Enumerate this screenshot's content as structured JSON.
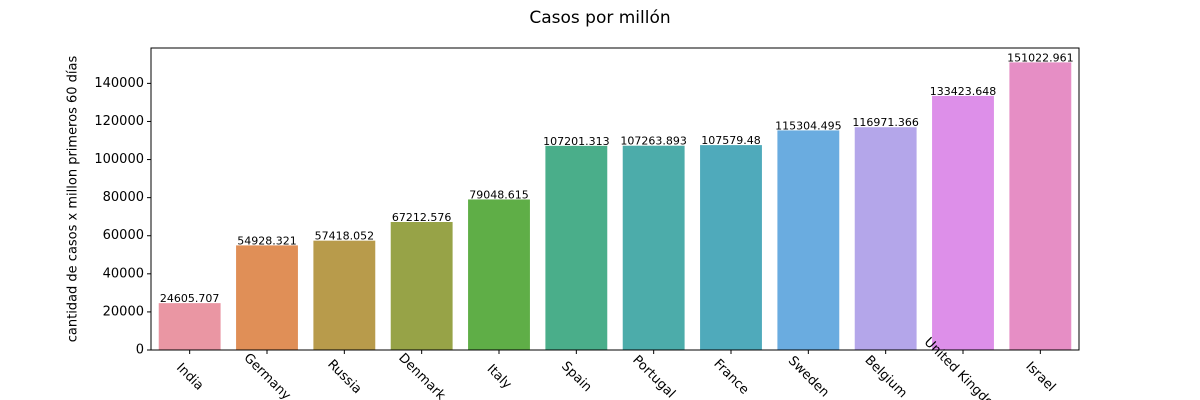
{
  "chart_data": {
    "type": "bar",
    "title": "Casos por millón",
    "y_label": "cantidad de casos x millon primeros 60 días",
    "categories": [
      "India",
      "Germany",
      "Russia",
      "Denmark",
      "Italy",
      "Spain",
      "Portugal",
      "France",
      "Sweden",
      "Belgium",
      "United Kingdom",
      "Israel"
    ],
    "values": [
      24605.707,
      54928.321,
      57418.052,
      67212.576,
      79048.615,
      107201.313,
      107263.893,
      107579.48,
      115304.495,
      116971.366,
      133423.648,
      151022.961
    ],
    "colors": [
      "#ea96a3",
      "#e08f57",
      "#b89b4b",
      "#97a347",
      "#5fae47",
      "#4aae8a",
      "#4cacaa",
      "#4faabb",
      "#6aace0",
      "#b4a6ea",
      "#dd8fe9",
      "#e68ec5"
    ],
    "ylim": [
      0,
      158574
    ],
    "yticks": [
      0,
      20000,
      40000,
      60000,
      80000,
      100000,
      120000,
      140000
    ]
  }
}
